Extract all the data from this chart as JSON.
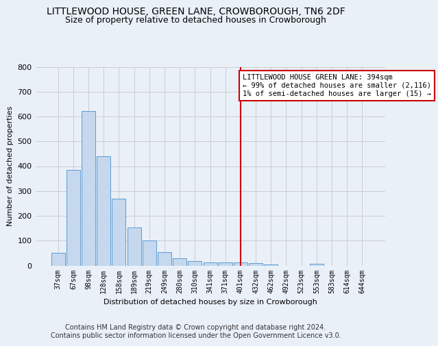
{
  "title": "LITTLEWOOD HOUSE, GREEN LANE, CROWBOROUGH, TN6 2DF",
  "subtitle": "Size of property relative to detached houses in Crowborough",
  "xlabel": "Distribution of detached houses by size in Crowborough",
  "ylabel": "Number of detached properties",
  "categories": [
    "37sqm",
    "67sqm",
    "98sqm",
    "128sqm",
    "158sqm",
    "189sqm",
    "219sqm",
    "249sqm",
    "280sqm",
    "310sqm",
    "341sqm",
    "371sqm",
    "401sqm",
    "432sqm",
    "462sqm",
    "492sqm",
    "523sqm",
    "553sqm",
    "583sqm",
    "614sqm",
    "644sqm"
  ],
  "values": [
    50,
    385,
    622,
    441,
    270,
    153,
    100,
    53,
    30,
    18,
    12,
    12,
    12,
    10,
    5,
    0,
    0,
    8,
    0,
    0,
    0
  ],
  "bar_color": "#c5d8ed",
  "bar_edge_color": "#5b9bd5",
  "vline_x": 12,
  "vline_color": "#cc0000",
  "ylim": [
    0,
    800
  ],
  "yticks": [
    0,
    100,
    200,
    300,
    400,
    500,
    600,
    700,
    800
  ],
  "annotation_title": "LITTLEWOOD HOUSE GREEN LANE: 394sqm",
  "annotation_line1": "← 99% of detached houses are smaller (2,116)",
  "annotation_line2": "1% of semi-detached houses are larger (15) →",
  "annotation_box_color": "#ffffff",
  "annotation_box_edge": "#cc0000",
  "bg_color": "#eaf0f8",
  "footer": "Contains HM Land Registry data © Crown copyright and database right 2024.\nContains public sector information licensed under the Open Government Licence v3.0.",
  "title_fontsize": 10,
  "subtitle_fontsize": 9,
  "footer_fontsize": 7,
  "tick_fontsize": 7,
  "axis_label_fontsize": 8
}
